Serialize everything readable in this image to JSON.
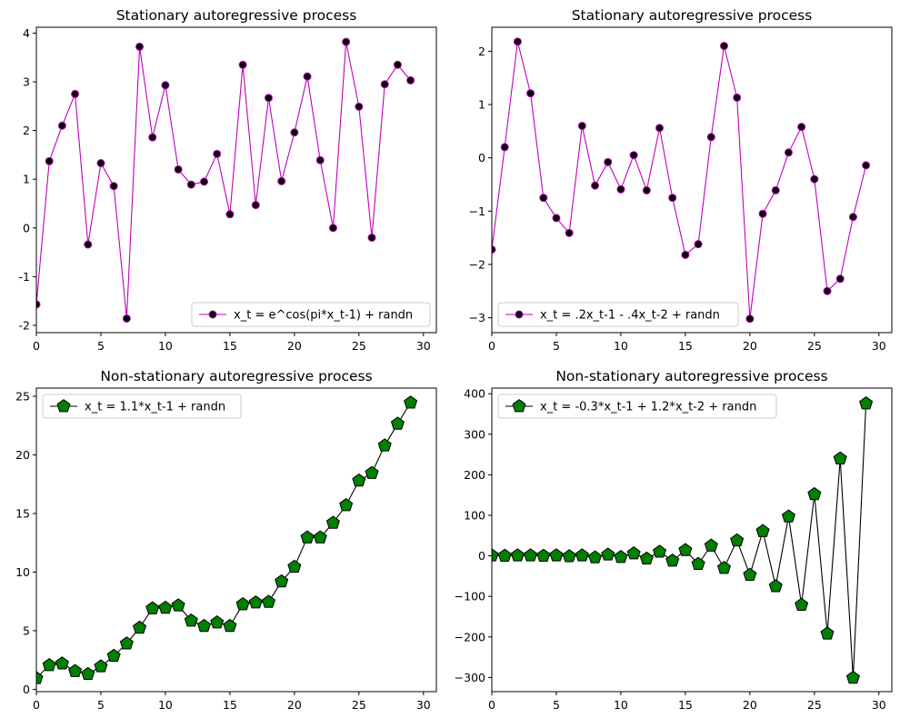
{
  "chart_data": [
    {
      "type": "line",
      "title": "Stationary autoregressive process",
      "xlabel": "",
      "ylabel": "",
      "xlim": [
        0,
        31
      ],
      "ylim": [
        -2.15,
        4.12
      ],
      "xticks": [
        0,
        5,
        10,
        15,
        20,
        25,
        30
      ],
      "yticks": [
        -2,
        -1,
        0,
        1,
        2,
        3,
        4
      ],
      "grid": false,
      "legend_position": "lower-right",
      "series": [
        {
          "name": "x_t = e^cos(pi*x_t-1) + randn",
          "color": "#bf00bf",
          "marker": "circle",
          "marker_face": "#000000",
          "x": [
            0,
            1,
            2,
            3,
            4,
            5,
            6,
            7,
            8,
            9,
            10,
            11,
            12,
            13,
            14,
            15,
            16,
            17,
            18,
            19,
            20,
            21,
            22,
            23,
            24,
            25,
            26,
            27,
            28,
            29
          ],
          "values": [
            -1.57,
            1.37,
            2.1,
            2.75,
            -0.34,
            1.33,
            0.86,
            -1.86,
            3.72,
            1.86,
            2.93,
            1.2,
            0.89,
            0.95,
            1.52,
            0.28,
            3.35,
            0.47,
            2.67,
            0.96,
            1.96,
            3.11,
            1.39,
            0.0,
            3.82,
            2.49,
            -0.2,
            2.95,
            3.35,
            3.03
          ]
        }
      ]
    },
    {
      "type": "line",
      "title": "Stationary autoregressive process",
      "xlabel": "",
      "ylabel": "",
      "xlim": [
        0,
        31
      ],
      "ylim": [
        -3.28,
        2.45
      ],
      "xticks": [
        0,
        5,
        10,
        15,
        20,
        25,
        30
      ],
      "yticks": [
        -3,
        -2,
        -1,
        0,
        1,
        2
      ],
      "ytick_labels": [
        "−3",
        "−2",
        "−1",
        "0",
        "1",
        "2"
      ],
      "grid": false,
      "legend_position": "lower-left",
      "series": [
        {
          "name": "x_t = .2x_t-1 - .4x_t-2 + randn",
          "color": "#bf00bf",
          "marker": "circle",
          "marker_face": "#000000",
          "x": [
            0,
            1,
            2,
            3,
            4,
            5,
            6,
            7,
            8,
            9,
            10,
            11,
            12,
            13,
            14,
            15,
            16,
            17,
            18,
            19,
            20,
            21,
            22,
            23,
            24,
            25,
            26,
            27,
            28,
            29
          ],
          "values": [
            -1.72,
            0.2,
            2.18,
            1.21,
            -0.75,
            -1.13,
            -1.41,
            0.6,
            -0.52,
            -0.08,
            -0.59,
            0.05,
            -0.61,
            0.56,
            -0.75,
            -1.82,
            -1.62,
            0.39,
            2.1,
            1.13,
            -3.02,
            -1.05,
            -0.61,
            0.1,
            0.58,
            -0.4,
            -2.5,
            -2.27,
            -1.11,
            -0.14
          ]
        }
      ]
    },
    {
      "type": "line",
      "title": "Non-stationary autoregressive process",
      "xlabel": "",
      "ylabel": "",
      "xlim": [
        0,
        31
      ],
      "ylim": [
        -0.2,
        25.7
      ],
      "xticks": [
        0,
        5,
        10,
        15,
        20,
        25,
        30
      ],
      "yticks": [
        0,
        5,
        10,
        15,
        20,
        25
      ],
      "grid": false,
      "legend_position": "upper-left",
      "series": [
        {
          "name": "x_t = 1.1*x_t-1 + randn",
          "color": "#000000",
          "marker": "pentagon",
          "marker_face": "#008000",
          "x": [
            0,
            1,
            2,
            3,
            4,
            5,
            6,
            7,
            8,
            9,
            10,
            11,
            12,
            13,
            14,
            15,
            16,
            17,
            18,
            19,
            20,
            21,
            22,
            23,
            24,
            25,
            26,
            27,
            28,
            29
          ],
          "values": [
            0.95,
            2.05,
            2.2,
            1.55,
            1.3,
            1.95,
            2.85,
            3.9,
            5.25,
            6.9,
            6.95,
            7.15,
            5.85,
            5.4,
            5.7,
            5.4,
            7.25,
            7.4,
            7.45,
            9.2,
            10.45,
            12.95,
            12.95,
            14.2,
            15.7,
            17.8,
            18.45,
            20.8,
            22.65,
            24.45
          ]
        }
      ]
    },
    {
      "type": "line",
      "title": "Non-stationary autoregressive process",
      "xlabel": "",
      "ylabel": "",
      "xlim": [
        0,
        31
      ],
      "ylim": [
        -335,
        414
      ],
      "xticks": [
        0,
        5,
        10,
        15,
        20,
        25,
        30
      ],
      "yticks": [
        -300,
        -200,
        -100,
        0,
        100,
        200,
        300,
        400
      ],
      "ytick_labels": [
        "−300",
        "−200",
        "−100",
        "0",
        "100",
        "200",
        "300",
        "400"
      ],
      "grid": false,
      "legend_position": "upper-left",
      "series": [
        {
          "name": "x_t = -0.3*x_t-1 + 1.2*x_t-2 + randn",
          "color": "#000000",
          "marker": "pentagon",
          "marker_face": "#008000",
          "x": [
            0,
            1,
            2,
            3,
            4,
            5,
            6,
            7,
            8,
            9,
            10,
            11,
            12,
            13,
            14,
            15,
            16,
            17,
            18,
            19,
            20,
            21,
            22,
            23,
            24,
            25,
            26,
            27,
            28,
            29
          ],
          "values": [
            1,
            0,
            1,
            1,
            0,
            1,
            -1,
            1,
            -4,
            3,
            -3,
            6,
            -7,
            10,
            -12,
            14,
            -20,
            25,
            -30,
            38,
            -47,
            61,
            -75,
            97,
            -121,
            152,
            -192,
            240,
            -301,
            376
          ]
        }
      ]
    }
  ]
}
